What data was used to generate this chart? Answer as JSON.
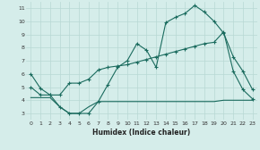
{
  "xlabel": "Humidex (Indice chaleur)",
  "background_color": "#d5edea",
  "grid_color": "#b8d8d4",
  "line_color": "#1a6b5e",
  "xlim": [
    -0.5,
    23.5
  ],
  "ylim": [
    2.5,
    11.5
  ],
  "xticks": [
    0,
    1,
    2,
    3,
    4,
    5,
    6,
    7,
    8,
    9,
    10,
    11,
    12,
    13,
    14,
    15,
    16,
    17,
    18,
    19,
    20,
    21,
    22,
    23
  ],
  "yticks": [
    3,
    4,
    5,
    6,
    7,
    8,
    9,
    10,
    11
  ],
  "line1_x": [
    0,
    1,
    2,
    3,
    4,
    5,
    6,
    7,
    8,
    9,
    10,
    11,
    12,
    13,
    14,
    15,
    16,
    17,
    18,
    19,
    20,
    21,
    22,
    23
  ],
  "line1_y": [
    6.0,
    4.9,
    4.4,
    3.5,
    3.0,
    3.0,
    3.0,
    3.9,
    5.2,
    6.5,
    7.0,
    8.3,
    7.8,
    6.5,
    9.9,
    10.3,
    10.6,
    11.2,
    10.7,
    10.0,
    9.1,
    7.3,
    6.2,
    4.8
  ],
  "line2_x": [
    0,
    1,
    2,
    3,
    4,
    5,
    6,
    7,
    8,
    9,
    10,
    11,
    12,
    13,
    14,
    15,
    16,
    17,
    18,
    19,
    20,
    21,
    22,
    23
  ],
  "line2_y": [
    5.0,
    4.4,
    4.4,
    4.4,
    5.3,
    5.3,
    5.6,
    6.3,
    6.5,
    6.6,
    6.7,
    6.9,
    7.1,
    7.3,
    7.5,
    7.7,
    7.9,
    8.1,
    8.3,
    8.4,
    9.2,
    6.2,
    4.8,
    4.1
  ],
  "line3_x": [
    0,
    1,
    2,
    3,
    4,
    5,
    6,
    7,
    8,
    9,
    10,
    11,
    12,
    13,
    14,
    15,
    16,
    17,
    18,
    19,
    20,
    21,
    22,
    23
  ],
  "line3_y": [
    4.2,
    4.2,
    4.2,
    3.5,
    3.0,
    3.0,
    3.5,
    3.9,
    3.9,
    3.9,
    3.9,
    3.9,
    3.9,
    3.9,
    3.9,
    3.9,
    3.9,
    3.9,
    3.9,
    3.9,
    4.0,
    4.0,
    4.0,
    4.0
  ]
}
